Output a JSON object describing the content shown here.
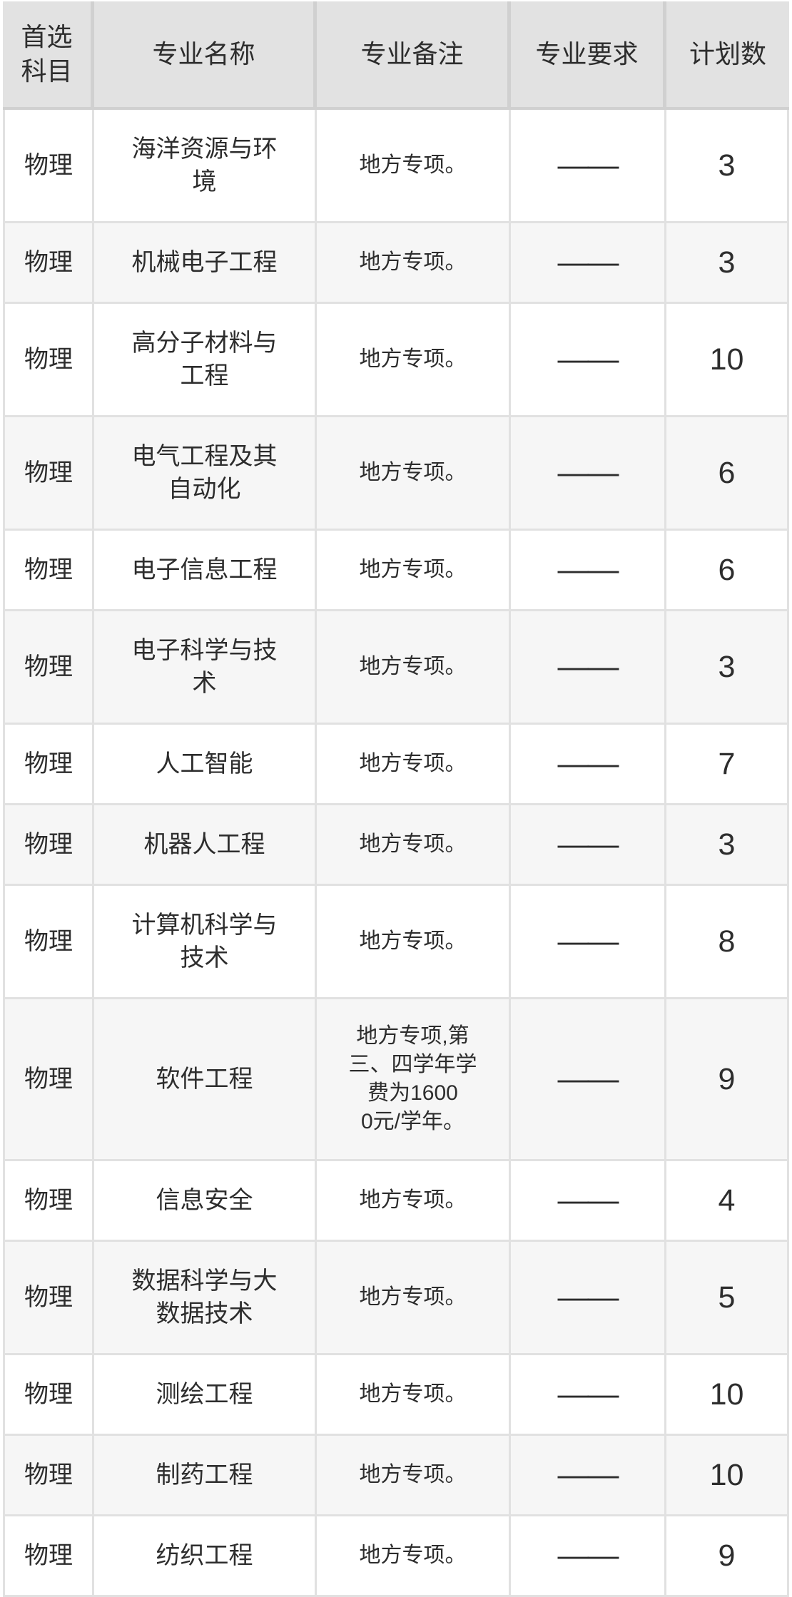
{
  "colors": {
    "header_bg": "#e2e2e2",
    "header_border": "#d0d0d0",
    "row_alt_bg": "#f6f6f6",
    "border": "#e1e1e1",
    "text": "#2d2d2d"
  },
  "table": {
    "headers": [
      "首选科目",
      "专业名称",
      "专业备注",
      "专业要求",
      "计划数"
    ],
    "rows": [
      {
        "subject": "物理",
        "name": "海洋资源与环境",
        "remark": "地方专项。",
        "requirement": "——",
        "count": 3
      },
      {
        "subject": "物理",
        "name": "机械电子工程",
        "remark": "地方专项。",
        "requirement": "——",
        "count": 3
      },
      {
        "subject": "物理",
        "name": "高分子材料与工程",
        "remark": "地方专项。",
        "requirement": "——",
        "count": 10
      },
      {
        "subject": "物理",
        "name": "电气工程及其自动化",
        "remark": "地方专项。",
        "requirement": "——",
        "count": 6
      },
      {
        "subject": "物理",
        "name": "电子信息工程",
        "remark": "地方专项。",
        "requirement": "——",
        "count": 6
      },
      {
        "subject": "物理",
        "name": "电子科学与技术",
        "remark": "地方专项。",
        "requirement": "——",
        "count": 3
      },
      {
        "subject": "物理",
        "name": "人工智能",
        "remark": "地方专项。",
        "requirement": "——",
        "count": 7
      },
      {
        "subject": "物理",
        "name": "机器人工程",
        "remark": "地方专项。",
        "requirement": "——",
        "count": 3
      },
      {
        "subject": "物理",
        "name": "计算机科学与技术",
        "remark": "地方专项。",
        "requirement": "——",
        "count": 8
      },
      {
        "subject": "物理",
        "name": "软件工程",
        "remark": "地方专项,第\n三、四学年学\n费为1600\n0元/学年。",
        "requirement": "——",
        "count": 9
      },
      {
        "subject": "物理",
        "name": "信息安全",
        "remark": "地方专项。",
        "requirement": "——",
        "count": 4
      },
      {
        "subject": "物理",
        "name": "数据科学与大数据技术",
        "remark": "地方专项。",
        "requirement": "——",
        "count": 5
      },
      {
        "subject": "物理",
        "name": "测绘工程",
        "remark": "地方专项。",
        "requirement": "——",
        "count": 10
      },
      {
        "subject": "物理",
        "name": "制药工程",
        "remark": "地方专项。",
        "requirement": "——",
        "count": 10
      },
      {
        "subject": "物理",
        "name": "纺织工程",
        "remark": "地方专项。",
        "requirement": "——",
        "count": 9
      }
    ]
  }
}
